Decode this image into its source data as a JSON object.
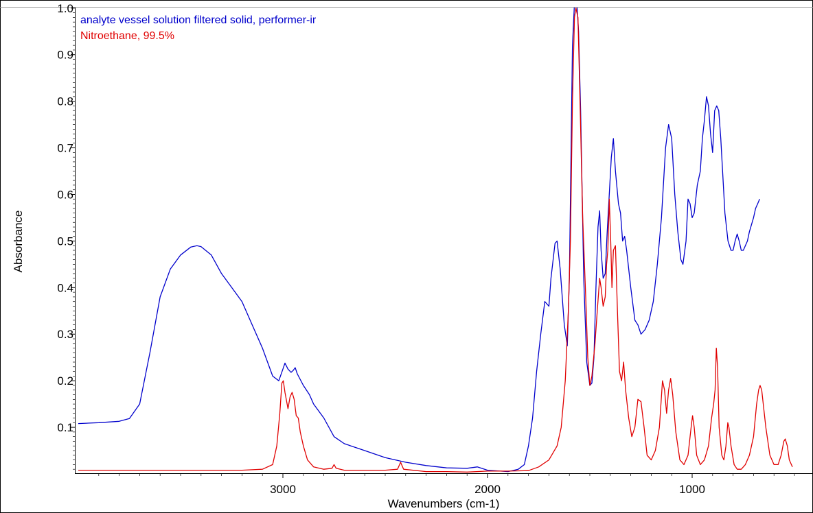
{
  "chart_data": {
    "type": "line",
    "xlabel": "Wavenumbers (cm-1)",
    "ylabel": "Absorbance",
    "xlim": [
      4000,
      400
    ],
    "ylim": [
      0,
      1.02
    ],
    "x_reversed": true,
    "grid": false,
    "legend_placement": "top-left",
    "x_ticks": [
      {
        "value": 3000,
        "label": "3000"
      },
      {
        "value": 2000,
        "label": "2000"
      },
      {
        "value": 1000,
        "label": "1000"
      }
    ],
    "y_ticks": [
      {
        "value": 0.1,
        "label": "0.1"
      },
      {
        "value": 0.2,
        "label": "0.2"
      },
      {
        "value": 0.3,
        "label": "0.3"
      },
      {
        "value": 0.4,
        "label": "0.4"
      },
      {
        "value": 0.5,
        "label": "0.5"
      },
      {
        "value": 0.6,
        "label": "0.6"
      },
      {
        "value": 0.7,
        "label": "0.7"
      },
      {
        "value": 0.8,
        "label": "0.8"
      },
      {
        "value": 0.9,
        "label": "0.9"
      },
      {
        "value": 1.0,
        "label": "1.0"
      }
    ],
    "series": [
      {
        "name": "analyte vessel solution filtered solid, performer-ir",
        "color": "#0000cc",
        "points": [
          [
            4000,
            0.108
          ],
          [
            3900,
            0.11
          ],
          [
            3800,
            0.113
          ],
          [
            3750,
            0.119
          ],
          [
            3700,
            0.15
          ],
          [
            3650,
            0.26
          ],
          [
            3600,
            0.38
          ],
          [
            3550,
            0.44
          ],
          [
            3500,
            0.47
          ],
          [
            3450,
            0.487
          ],
          [
            3420,
            0.49
          ],
          [
            3400,
            0.488
          ],
          [
            3350,
            0.47
          ],
          [
            3300,
            0.43
          ],
          [
            3250,
            0.4
          ],
          [
            3200,
            0.37
          ],
          [
            3150,
            0.32
          ],
          [
            3100,
            0.27
          ],
          [
            3050,
            0.21
          ],
          [
            3020,
            0.2
          ],
          [
            3000,
            0.225
          ],
          [
            2990,
            0.238
          ],
          [
            2975,
            0.225
          ],
          [
            2960,
            0.218
          ],
          [
            2950,
            0.222
          ],
          [
            2940,
            0.228
          ],
          [
            2930,
            0.215
          ],
          [
            2900,
            0.19
          ],
          [
            2870,
            0.17
          ],
          [
            2850,
            0.15
          ],
          [
            2800,
            0.12
          ],
          [
            2750,
            0.08
          ],
          [
            2700,
            0.065
          ],
          [
            2600,
            0.05
          ],
          [
            2500,
            0.035
          ],
          [
            2400,
            0.025
          ],
          [
            2300,
            0.018
          ],
          [
            2200,
            0.013
          ],
          [
            2100,
            0.012
          ],
          [
            2050,
            0.015
          ],
          [
            2000,
            0.008
          ],
          [
            1900,
            0.005
          ],
          [
            1850,
            0.01
          ],
          [
            1820,
            0.02
          ],
          [
            1800,
            0.06
          ],
          [
            1780,
            0.12
          ],
          [
            1760,
            0.22
          ],
          [
            1740,
            0.3
          ],
          [
            1720,
            0.37
          ],
          [
            1700,
            0.36
          ],
          [
            1690,
            0.42
          ],
          [
            1670,
            0.495
          ],
          [
            1660,
            0.5
          ],
          [
            1645,
            0.44
          ],
          [
            1625,
            0.32
          ],
          [
            1610,
            0.275
          ],
          [
            1600,
            0.42
          ],
          [
            1585,
            0.92
          ],
          [
            1575,
            1.01
          ],
          [
            1565,
            1.02
          ],
          [
            1555,
            0.95
          ],
          [
            1545,
            0.78
          ],
          [
            1530,
            0.42
          ],
          [
            1515,
            0.24
          ],
          [
            1500,
            0.19
          ],
          [
            1490,
            0.195
          ],
          [
            1480,
            0.25
          ],
          [
            1470,
            0.4
          ],
          [
            1460,
            0.53
          ],
          [
            1452,
            0.565
          ],
          [
            1445,
            0.48
          ],
          [
            1435,
            0.42
          ],
          [
            1425,
            0.43
          ],
          [
            1415,
            0.52
          ],
          [
            1405,
            0.6
          ],
          [
            1395,
            0.68
          ],
          [
            1385,
            0.72
          ],
          [
            1375,
            0.65
          ],
          [
            1360,
            0.58
          ],
          [
            1350,
            0.56
          ],
          [
            1340,
            0.5
          ],
          [
            1330,
            0.51
          ],
          [
            1320,
            0.48
          ],
          [
            1300,
            0.4
          ],
          [
            1280,
            0.33
          ],
          [
            1265,
            0.32
          ],
          [
            1250,
            0.3
          ],
          [
            1230,
            0.31
          ],
          [
            1210,
            0.33
          ],
          [
            1190,
            0.37
          ],
          [
            1170,
            0.45
          ],
          [
            1150,
            0.55
          ],
          [
            1130,
            0.7
          ],
          [
            1115,
            0.75
          ],
          [
            1100,
            0.72
          ],
          [
            1085,
            0.6
          ],
          [
            1070,
            0.52
          ],
          [
            1055,
            0.46
          ],
          [
            1045,
            0.45
          ],
          [
            1030,
            0.5
          ],
          [
            1020,
            0.59
          ],
          [
            1010,
            0.58
          ],
          [
            1000,
            0.55
          ],
          [
            990,
            0.56
          ],
          [
            975,
            0.62
          ],
          [
            960,
            0.65
          ],
          [
            950,
            0.72
          ],
          [
            940,
            0.76
          ],
          [
            930,
            0.81
          ],
          [
            920,
            0.79
          ],
          [
            910,
            0.73
          ],
          [
            900,
            0.69
          ],
          [
            890,
            0.78
          ],
          [
            880,
            0.79
          ],
          [
            870,
            0.78
          ],
          [
            860,
            0.72
          ],
          [
            850,
            0.64
          ],
          [
            840,
            0.56
          ],
          [
            825,
            0.5
          ],
          [
            810,
            0.48
          ],
          [
            800,
            0.48
          ],
          [
            790,
            0.5
          ],
          [
            780,
            0.515
          ],
          [
            770,
            0.5
          ],
          [
            760,
            0.48
          ],
          [
            750,
            0.48
          ],
          [
            740,
            0.49
          ],
          [
            730,
            0.5
          ],
          [
            720,
            0.52
          ],
          [
            700,
            0.55
          ],
          [
            690,
            0.57
          ],
          [
            680,
            0.58
          ],
          [
            670,
            0.59
          ]
        ]
      },
      {
        "name": "Nitroethane, 99.5%",
        "color": "#e00000",
        "points": [
          [
            4000,
            0.008
          ],
          [
            3800,
            0.008
          ],
          [
            3600,
            0.008
          ],
          [
            3400,
            0.008
          ],
          [
            3200,
            0.008
          ],
          [
            3100,
            0.01
          ],
          [
            3050,
            0.02
          ],
          [
            3030,
            0.06
          ],
          [
            3015,
            0.13
          ],
          [
            3005,
            0.195
          ],
          [
            2998,
            0.2
          ],
          [
            2990,
            0.175
          ],
          [
            2975,
            0.14
          ],
          [
            2965,
            0.165
          ],
          [
            2955,
            0.175
          ],
          [
            2945,
            0.16
          ],
          [
            2935,
            0.125
          ],
          [
            2925,
            0.12
          ],
          [
            2915,
            0.09
          ],
          [
            2900,
            0.06
          ],
          [
            2880,
            0.03
          ],
          [
            2850,
            0.015
          ],
          [
            2800,
            0.01
          ],
          [
            2760,
            0.012
          ],
          [
            2750,
            0.02
          ],
          [
            2740,
            0.012
          ],
          [
            2700,
            0.008
          ],
          [
            2600,
            0.008
          ],
          [
            2500,
            0.008
          ],
          [
            2440,
            0.01
          ],
          [
            2425,
            0.025
          ],
          [
            2410,
            0.01
          ],
          [
            2300,
            0.005
          ],
          [
            2200,
            0.005
          ],
          [
            2100,
            0.004
          ],
          [
            2000,
            0.006
          ],
          [
            1900,
            0.006
          ],
          [
            1800,
            0.007
          ],
          [
            1750,
            0.015
          ],
          [
            1700,
            0.03
          ],
          [
            1660,
            0.06
          ],
          [
            1640,
            0.1
          ],
          [
            1620,
            0.2
          ],
          [
            1605,
            0.35
          ],
          [
            1595,
            0.5
          ],
          [
            1585,
            0.8
          ],
          [
            1575,
            0.98
          ],
          [
            1568,
            1.0
          ],
          [
            1558,
            0.98
          ],
          [
            1548,
            0.8
          ],
          [
            1535,
            0.55
          ],
          [
            1520,
            0.38
          ],
          [
            1510,
            0.25
          ],
          [
            1500,
            0.19
          ],
          [
            1490,
            0.21
          ],
          [
            1475,
            0.28
          ],
          [
            1462,
            0.36
          ],
          [
            1452,
            0.42
          ],
          [
            1445,
            0.4
          ],
          [
            1435,
            0.36
          ],
          [
            1425,
            0.38
          ],
          [
            1418,
            0.45
          ],
          [
            1412,
            0.48
          ],
          [
            1405,
            0.59
          ],
          [
            1398,
            0.5
          ],
          [
            1392,
            0.4
          ],
          [
            1385,
            0.48
          ],
          [
            1375,
            0.49
          ],
          [
            1365,
            0.35
          ],
          [
            1355,
            0.22
          ],
          [
            1345,
            0.2
          ],
          [
            1335,
            0.24
          ],
          [
            1325,
            0.18
          ],
          [
            1310,
            0.12
          ],
          [
            1295,
            0.08
          ],
          [
            1280,
            0.1
          ],
          [
            1265,
            0.16
          ],
          [
            1250,
            0.155
          ],
          [
            1235,
            0.1
          ],
          [
            1220,
            0.04
          ],
          [
            1200,
            0.03
          ],
          [
            1180,
            0.05
          ],
          [
            1160,
            0.1
          ],
          [
            1145,
            0.2
          ],
          [
            1135,
            0.18
          ],
          [
            1125,
            0.13
          ],
          [
            1115,
            0.18
          ],
          [
            1105,
            0.205
          ],
          [
            1095,
            0.17
          ],
          [
            1080,
            0.09
          ],
          [
            1060,
            0.03
          ],
          [
            1040,
            0.02
          ],
          [
            1020,
            0.04
          ],
          [
            1005,
            0.1
          ],
          [
            998,
            0.125
          ],
          [
            990,
            0.1
          ],
          [
            978,
            0.04
          ],
          [
            960,
            0.02
          ],
          [
            940,
            0.03
          ],
          [
            920,
            0.06
          ],
          [
            905,
            0.12
          ],
          [
            895,
            0.15
          ],
          [
            888,
            0.18
          ],
          [
            882,
            0.27
          ],
          [
            876,
            0.23
          ],
          [
            868,
            0.1
          ],
          [
            855,
            0.04
          ],
          [
            845,
            0.03
          ],
          [
            835,
            0.06
          ],
          [
            826,
            0.11
          ],
          [
            820,
            0.1
          ],
          [
            810,
            0.06
          ],
          [
            795,
            0.02
          ],
          [
            780,
            0.01
          ],
          [
            760,
            0.01
          ],
          [
            740,
            0.02
          ],
          [
            720,
            0.04
          ],
          [
            700,
            0.08
          ],
          [
            685,
            0.15
          ],
          [
            675,
            0.18
          ],
          [
            668,
            0.19
          ],
          [
            660,
            0.18
          ],
          [
            650,
            0.14
          ],
          [
            640,
            0.1
          ],
          [
            620,
            0.04
          ],
          [
            600,
            0.02
          ],
          [
            580,
            0.02
          ],
          [
            565,
            0.04
          ],
          [
            552,
            0.07
          ],
          [
            545,
            0.075
          ],
          [
            535,
            0.06
          ],
          [
            525,
            0.03
          ],
          [
            510,
            0.015
          ]
        ]
      }
    ]
  }
}
